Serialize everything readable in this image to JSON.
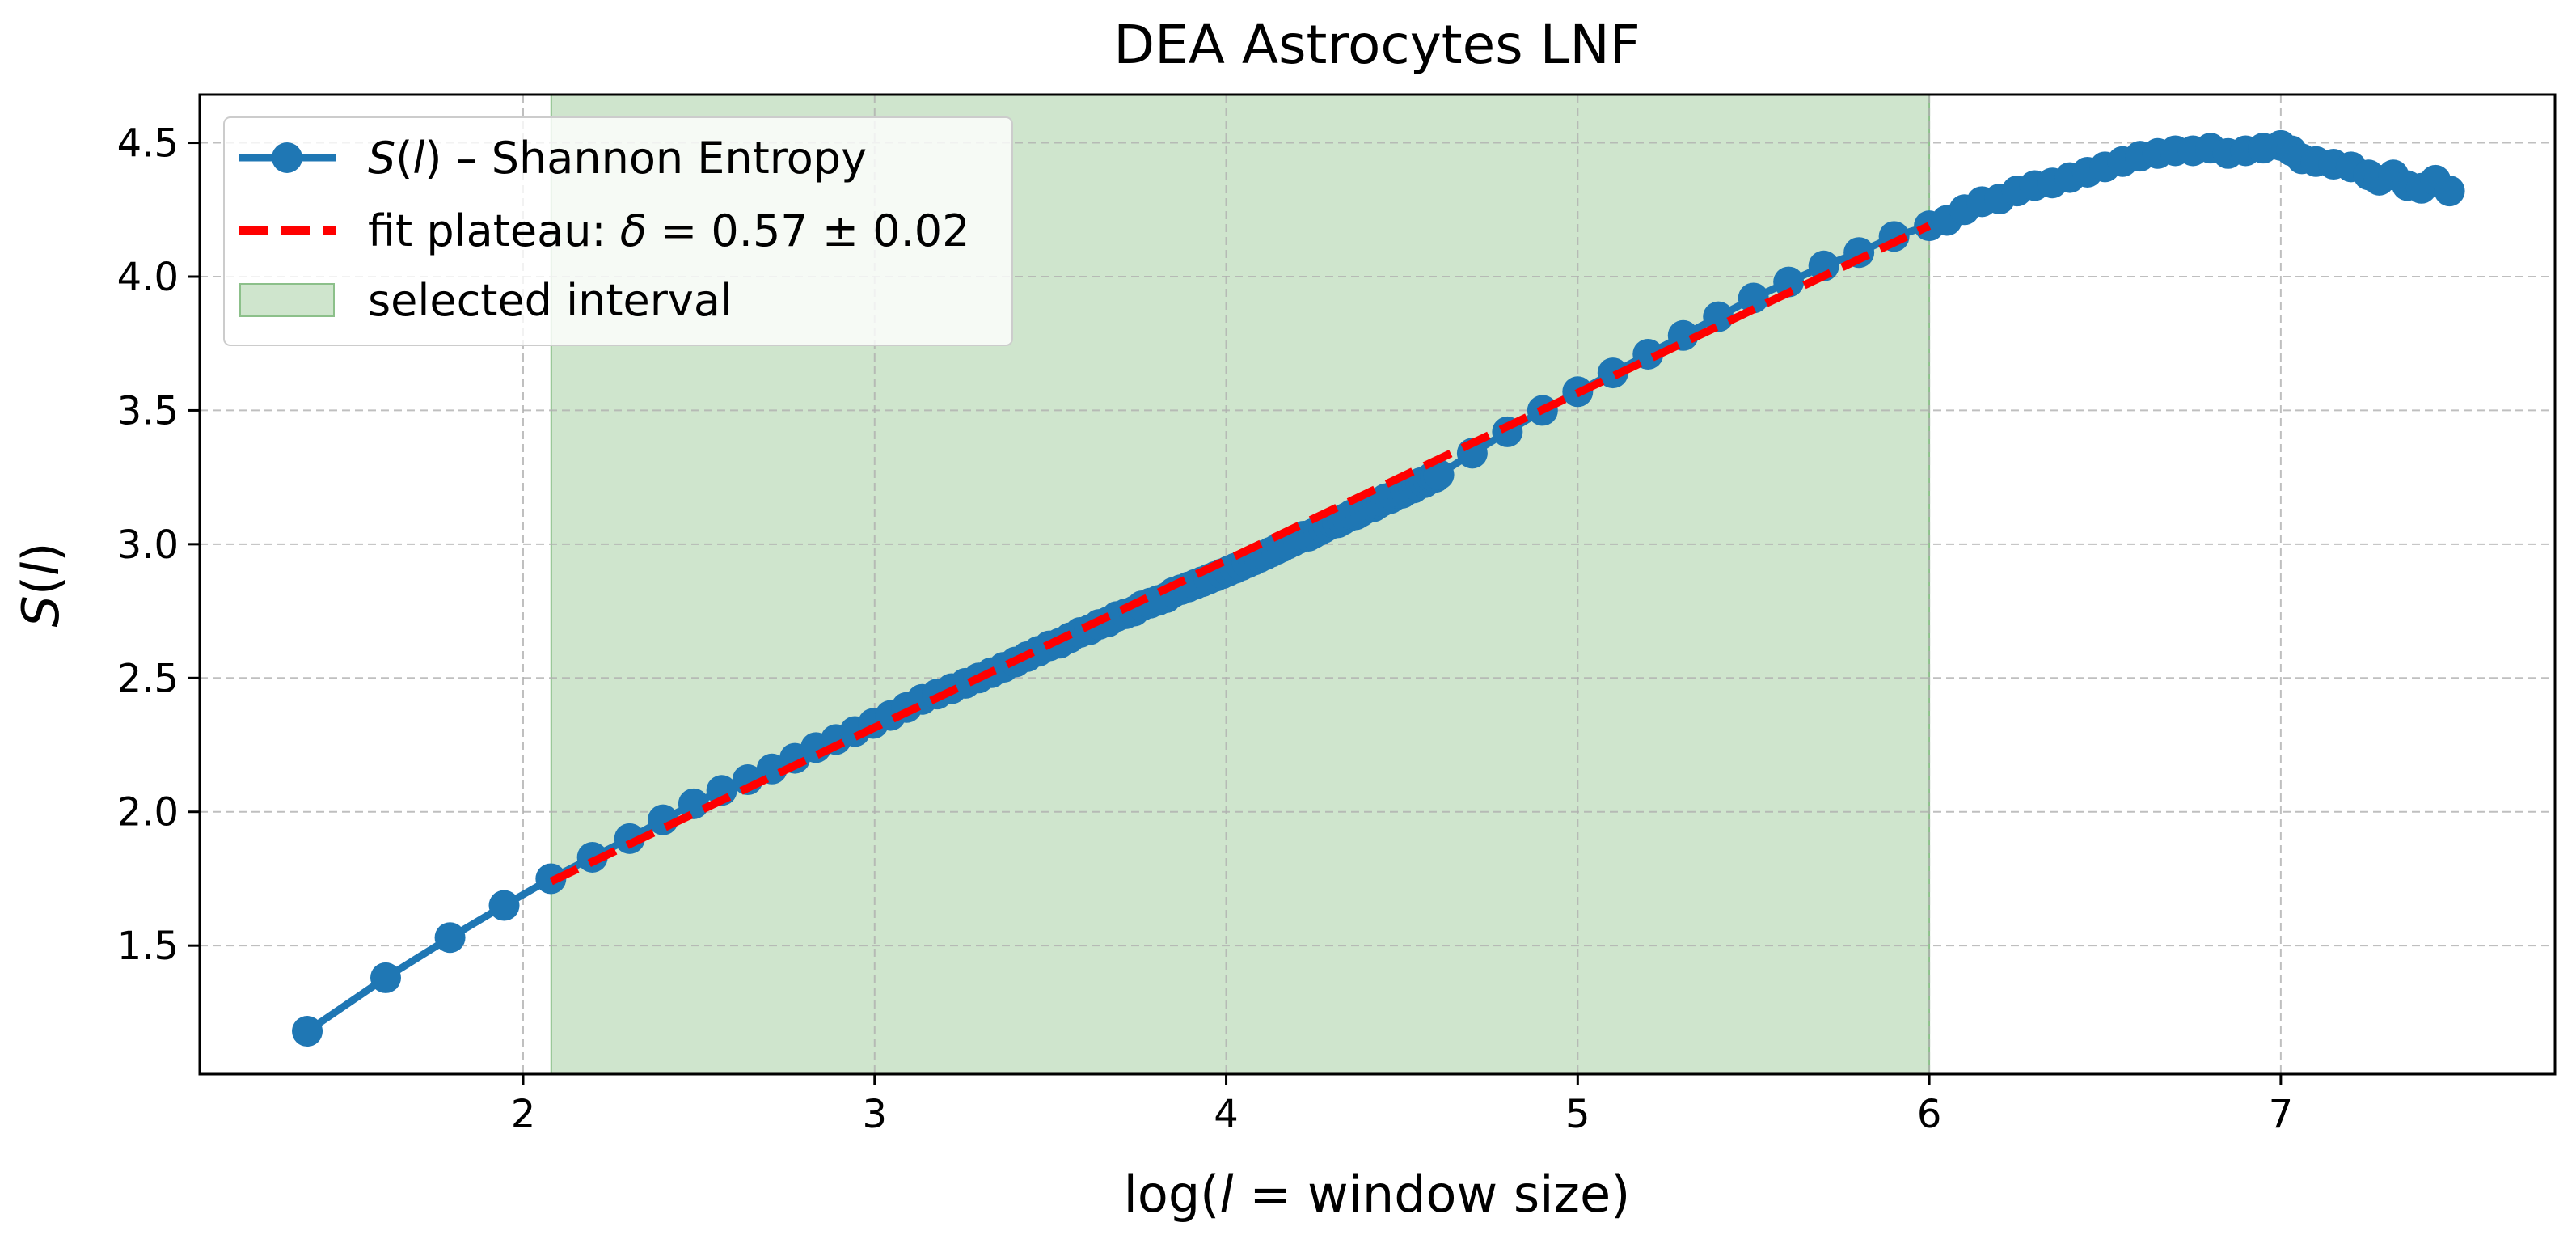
{
  "chart_data": {
    "type": "line",
    "title": "DEA Astrocytes LNF",
    "xlabel": "log(l = window size)",
    "ylabel": "S(l)",
    "xlim": [
      1.08,
      7.78
    ],
    "ylim": [
      1.02,
      4.68
    ],
    "x_ticks": [
      2,
      3,
      4,
      5,
      6,
      7
    ],
    "y_ticks": [
      1.5,
      2.0,
      2.5,
      3.0,
      3.5,
      4.0,
      4.5
    ],
    "x_tick_labels": [
      "2",
      "3",
      "4",
      "5",
      "6",
      "7"
    ],
    "y_tick_labels": [
      "1.5",
      "2.0",
      "2.5",
      "3.0",
      "3.5",
      "4.0",
      "4.5"
    ],
    "grid": true,
    "legend_position": "top-left",
    "legend": {
      "entry_1": {
        "math": "S",
        "open": "(",
        "var": "l",
        "close": ")",
        "rest": " – Shannon Entropy"
      },
      "entry_2": {
        "prefix": "fit plateau: ",
        "symbol": "δ",
        "rest": " = 0.57 ± 0.02"
      },
      "entry_3": "selected interval"
    },
    "selected_interval": [
      2.08,
      6.0
    ],
    "series": [
      {
        "color": "#1f77b4",
        "x": [
          1.386,
          1.609,
          1.792,
          1.946,
          2.079,
          2.197,
          2.303,
          2.398,
          2.485,
          2.565,
          2.639,
          2.708,
          2.773,
          2.833,
          2.89,
          2.944,
          2.996,
          3.045,
          3.091,
          3.135,
          3.178,
          3.219,
          3.258,
          3.296,
          3.332,
          3.367,
          3.401,
          3.434,
          3.466,
          3.497,
          3.526,
          3.555,
          3.584,
          3.611,
          3.638,
          3.664,
          3.689,
          3.714,
          3.738,
          3.761,
          3.784,
          3.807,
          3.829,
          3.85,
          3.871,
          3.892,
          3.912,
          3.932,
          3.951,
          3.97,
          3.989,
          4.007,
          4.025,
          4.043,
          4.06,
          4.078,
          4.094,
          4.111,
          4.127,
          4.143,
          4.159,
          4.174,
          4.19,
          4.205,
          4.22,
          4.234,
          4.248,
          4.263,
          4.277,
          4.29,
          4.304,
          4.317,
          4.331,
          4.344,
          4.357,
          4.369,
          4.382,
          4.394,
          4.407,
          4.419,
          4.431,
          4.443,
          4.454,
          4.466,
          4.477,
          4.489,
          4.5,
          4.511,
          4.522,
          4.533,
          4.543,
          4.554,
          4.564,
          4.575,
          4.585,
          4.595,
          4.605,
          4.7,
          4.8,
          4.9,
          5.0,
          5.1,
          5.2,
          5.3,
          5.4,
          5.5,
          5.6,
          5.7,
          5.8,
          5.9,
          6.0,
          6.05,
          6.1,
          6.15,
          6.2,
          6.25,
          6.3,
          6.35,
          6.4,
          6.45,
          6.5,
          6.55,
          6.6,
          6.65,
          6.7,
          6.75,
          6.8,
          6.85,
          6.9,
          6.95,
          7.0,
          7.03,
          7.06,
          7.1,
          7.15,
          7.2,
          7.25,
          7.28,
          7.32,
          7.36,
          7.4,
          7.44,
          7.48
        ],
        "y": [
          1.18,
          1.38,
          1.53,
          1.65,
          1.75,
          1.83,
          1.9,
          1.97,
          2.03,
          2.08,
          2.12,
          2.16,
          2.2,
          2.24,
          2.27,
          2.3,
          2.33,
          2.36,
          2.39,
          2.42,
          2.44,
          2.46,
          2.48,
          2.5,
          2.52,
          2.54,
          2.56,
          2.58,
          2.6,
          2.62,
          2.63,
          2.65,
          2.67,
          2.68,
          2.7,
          2.71,
          2.73,
          2.74,
          2.75,
          2.77,
          2.78,
          2.79,
          2.8,
          2.82,
          2.83,
          2.84,
          2.85,
          2.86,
          2.87,
          2.88,
          2.89,
          2.9,
          2.91,
          2.92,
          2.93,
          2.94,
          2.95,
          2.96,
          2.97,
          2.98,
          2.99,
          3.0,
          3.01,
          3.02,
          3.03,
          3.03,
          3.04,
          3.05,
          3.06,
          3.07,
          3.08,
          3.08,
          3.09,
          3.1,
          3.11,
          3.11,
          3.12,
          3.13,
          3.14,
          3.14,
          3.15,
          3.16,
          3.17,
          3.17,
          3.18,
          3.19,
          3.19,
          3.2,
          3.21,
          3.21,
          3.22,
          3.23,
          3.23,
          3.24,
          3.25,
          3.25,
          3.26,
          3.34,
          3.42,
          3.5,
          3.57,
          3.64,
          3.71,
          3.78,
          3.85,
          3.92,
          3.98,
          4.04,
          4.09,
          4.15,
          4.19,
          4.21,
          4.25,
          4.28,
          4.29,
          4.32,
          4.34,
          4.35,
          4.37,
          4.39,
          4.41,
          4.43,
          4.45,
          4.46,
          4.47,
          4.47,
          4.48,
          4.46,
          4.47,
          4.48,
          4.49,
          4.47,
          4.44,
          4.43,
          4.42,
          4.41,
          4.38,
          4.36,
          4.38,
          4.34,
          4.33,
          4.36,
          4.32
        ]
      },
      {
        "color": "#ff0000",
        "style": "dashed",
        "x": [
          2.08,
          6.0
        ],
        "y": [
          1.74,
          4.19
        ]
      }
    ]
  }
}
